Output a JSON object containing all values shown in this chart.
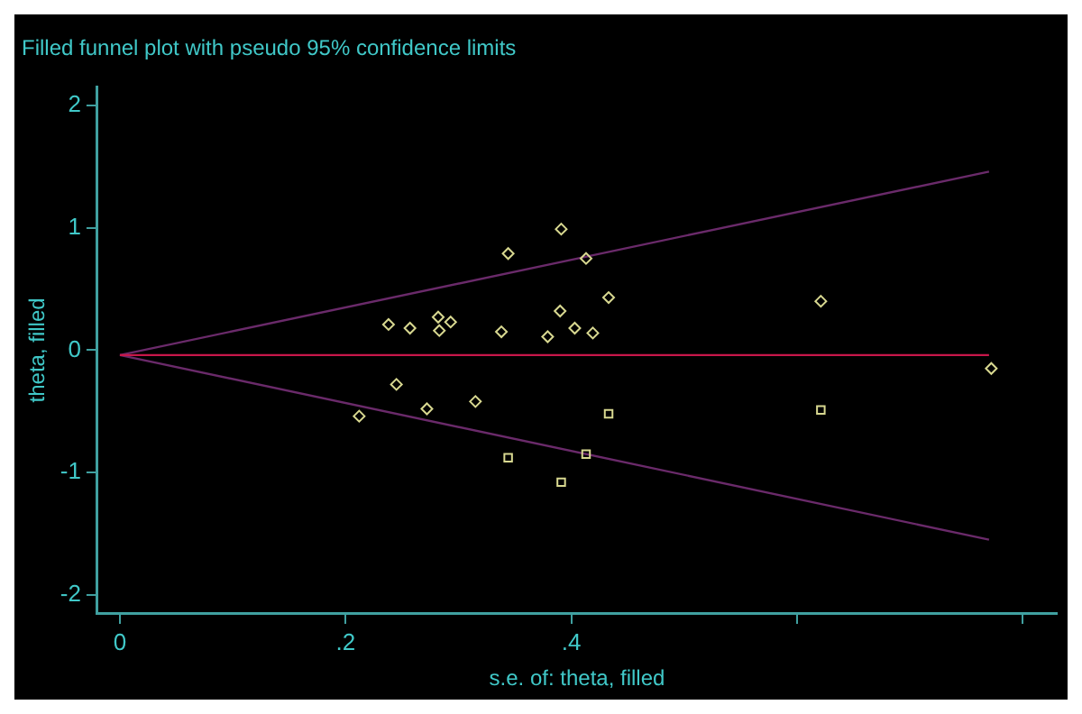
{
  "chart_data": {
    "type": "scatter",
    "title": "Filled funnel plot with pseudo 95% confidence limits",
    "xlabel": "s.e. of: theta, filled",
    "ylabel": "theta, filled",
    "xlim": [
      -0.02,
      0.83
    ],
    "xticks": [
      0,
      {
        "value": 0.2,
        "label": ".2"
      },
      {
        "value": 0.4,
        "label": ".4"
      },
      {
        "value": 0.6,
        "label": null
      },
      {
        "value": 0.8,
        "label": null
      }
    ],
    "ylim": [
      -2.15,
      2.15
    ],
    "yticks": [
      -2,
      -1,
      0,
      1,
      2
    ],
    "grid": false,
    "legend": false,
    "series": [
      {
        "type": "scatter",
        "marker": "diamond",
        "color": "#d8d890",
        "x": [
          0.238,
          0.257,
          0.282,
          0.283,
          0.245,
          0.212,
          0.272,
          0.391,
          0.344,
          0.413,
          0.433,
          0.39,
          0.293,
          0.338,
          0.379,
          0.403,
          0.419,
          0.315,
          0.621,
          0.772
        ],
        "values": [
          0.21,
          0.18,
          0.27,
          0.16,
          -0.28,
          -0.54,
          -0.48,
          0.99,
          0.79,
          0.75,
          0.43,
          0.32,
          0.23,
          0.15,
          0.11,
          0.18,
          0.14,
          -0.42,
          0.4,
          -0.15
        ]
      },
      {
        "type": "scatter",
        "marker": "square",
        "color": "#d8d890",
        "x": [
          0.433,
          0.344,
          0.413,
          0.391,
          0.621
        ],
        "values": [
          -0.52,
          -0.88,
          -0.85,
          -1.08,
          -0.49
        ]
      },
      {
        "type": "line",
        "marker": "none",
        "color": "#c8174a",
        "x": [
          0,
          0.77
        ],
        "values": [
          -0.04,
          -0.04
        ]
      },
      {
        "type": "line",
        "marker": "none",
        "color": "#6a2a6a",
        "x": [
          0,
          0.77
        ],
        "values": [
          -0.04,
          1.46
        ]
      },
      {
        "type": "line",
        "marker": "none",
        "color": "#6a2a6a",
        "x": [
          0,
          0.77
        ],
        "values": [
          -0.04,
          -1.55
        ]
      }
    ]
  }
}
